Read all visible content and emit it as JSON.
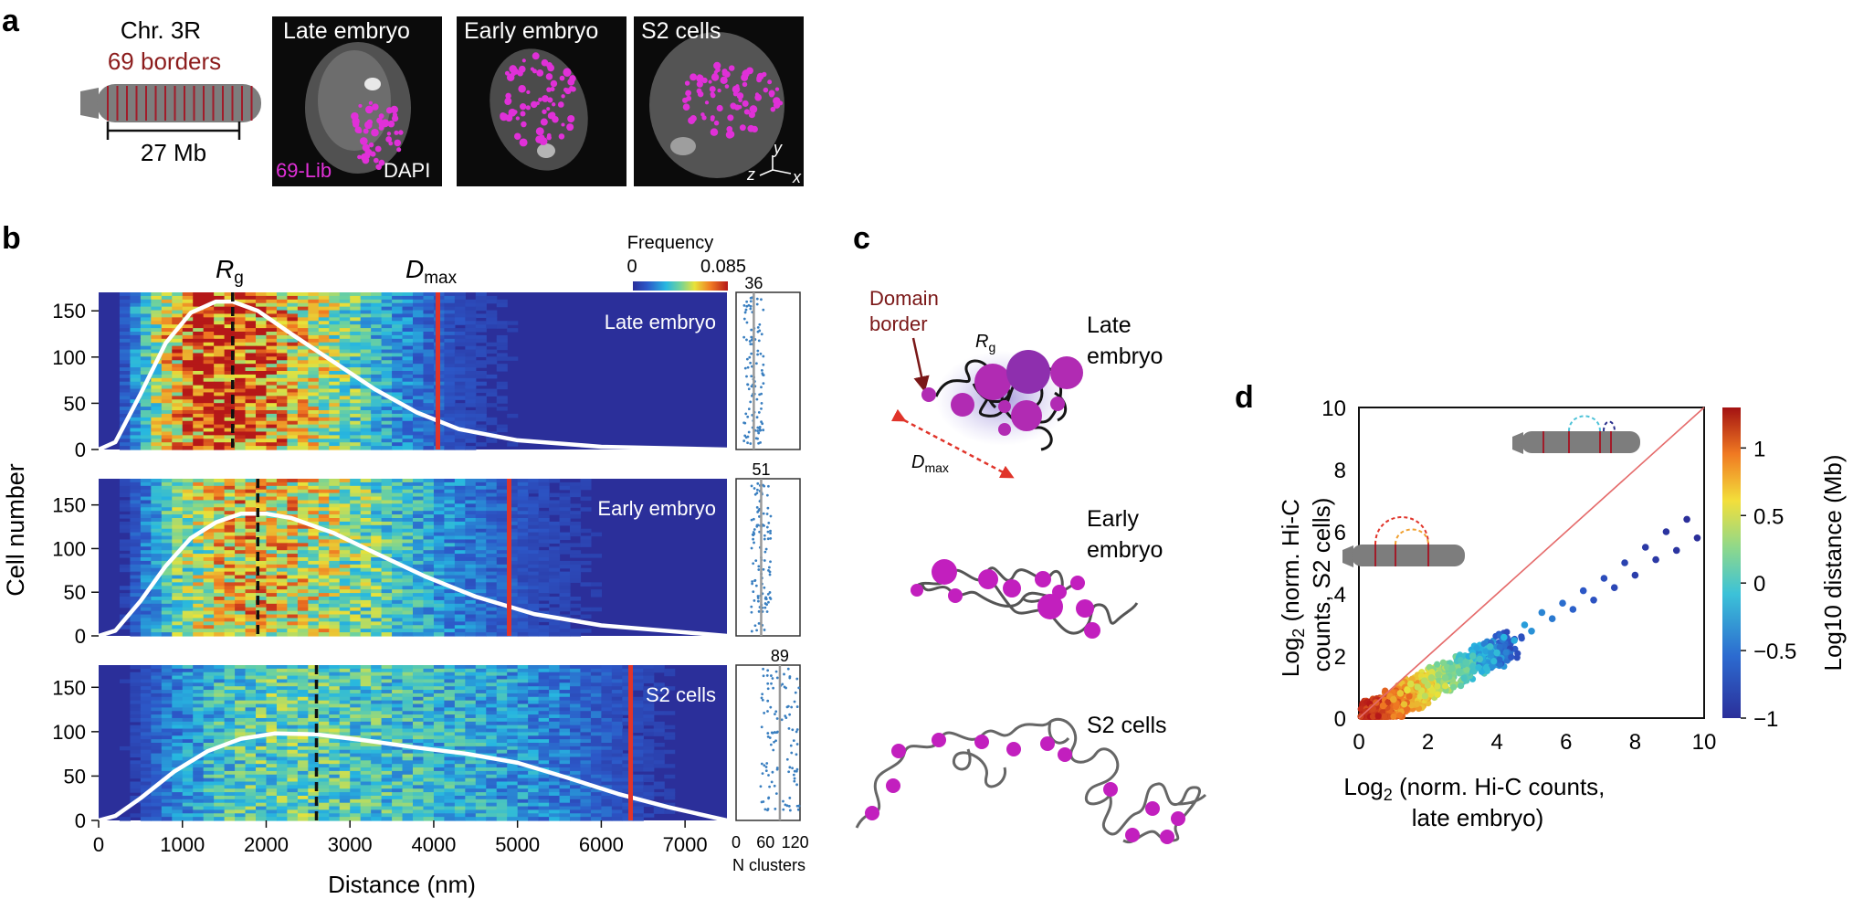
{
  "panels": {
    "a": {
      "letter": "a",
      "chrom_name": "Chr. 3R",
      "borders_label": "69 borders",
      "scale_label": "27 Mb",
      "images": [
        "Late embryo",
        "Early embryo",
        "S2 cells"
      ],
      "probe_label": "69-Lib",
      "dapi_label": "DAPI",
      "axes": {
        "y": "y",
        "z": "z",
        "x": "x"
      }
    },
    "b": {
      "letter": "b",
      "rg_label": "R",
      "rg_sub": "g",
      "dmax_label": "D",
      "dmax_sub": "max",
      "colorbar_title": "Frequency",
      "colorbar_min": "0",
      "colorbar_max": "0.085",
      "ylabel": "Cell number",
      "xlabel": "Distance (nm)",
      "nclusters_label": "N clusters",
      "nclusters_ticks": [
        "0",
        "60",
        "120"
      ],
      "x_ticks": [
        "0",
        "1000",
        "2000",
        "3000",
        "4000",
        "5000",
        "6000",
        "7000"
      ],
      "y_ticks": [
        "0",
        "50",
        "100",
        "150"
      ]
    },
    "c": {
      "letter": "c",
      "domain_border_line1": "Domain",
      "domain_border_line2": "border",
      "rg": "R",
      "rg_sub": "g",
      "dmax": "D",
      "dmax_sub": "max",
      "states": [
        {
          "line1": "Late",
          "line2": "embryo"
        },
        {
          "line1": "Early",
          "line2": "embryo"
        },
        {
          "line1": "S2 cells",
          "line2": ""
        }
      ]
    },
    "d": {
      "letter": "d",
      "ylabel_line1": "Log",
      "ylabel_line1_rest": " (norm. Hi-C",
      "ylabel_line2": "counts, S2 cells)",
      "xlabel_line1": "Log",
      "xlabel_line1_rest": " (norm. Hi-C counts,",
      "xlabel_line2": "late embryo)",
      "sub2": "2",
      "x_ticks": [
        "0",
        "2",
        "4",
        "6",
        "8",
        "10"
      ],
      "y_ticks": [
        "0",
        "2",
        "4",
        "6",
        "8",
        "10"
      ],
      "colorbar_label": "Log10 distance (Mb)",
      "colorbar_ticks": [
        "1",
        "0.5",
        "0",
        "−0.5",
        "−1"
      ]
    }
  },
  "chart_data": [
    {
      "type": "heatmap",
      "title": "Late embryo",
      "xlabel": "Distance (nm)",
      "ylabel": "Cell number",
      "xlim": [
        0,
        7500
      ],
      "ylim": [
        0,
        170
      ],
      "colorbar": {
        "title": "Frequency",
        "min": 0,
        "max": 0.085
      },
      "rg_nm": 1600,
      "dmax_nm": 4050,
      "distribution_curve": {
        "x": [
          0,
          200,
          500,
          800,
          1100,
          1400,
          1600,
          1900,
          2300,
          2800,
          3300,
          3800,
          4300,
          5000,
          6000,
          7500
        ],
        "y": [
          0,
          8,
          60,
          115,
          148,
          160,
          160,
          150,
          125,
          95,
          65,
          40,
          22,
          10,
          3,
          0
        ]
      },
      "n_clusters_mean": 36
    },
    {
      "type": "heatmap",
      "title": "Early embryo",
      "xlabel": "Distance (nm)",
      "ylabel": "Cell number",
      "xlim": [
        0,
        7500
      ],
      "ylim": [
        0,
        180
      ],
      "rg_nm": 1900,
      "dmax_nm": 4900,
      "distribution_curve": {
        "x": [
          0,
          200,
          500,
          800,
          1100,
          1400,
          1700,
          2000,
          2300,
          2800,
          3300,
          3900,
          4500,
          5200,
          6000,
          7500
        ],
        "y": [
          0,
          6,
          40,
          80,
          112,
          130,
          140,
          140,
          135,
          118,
          95,
          68,
          45,
          25,
          12,
          0
        ]
      },
      "n_clusters_mean": 51
    },
    {
      "type": "heatmap",
      "title": "S2 cells",
      "xlabel": "Distance (nm)",
      "ylabel": "Cell number",
      "xlim": [
        0,
        7500
      ],
      "ylim": [
        0,
        175
      ],
      "rg_nm": 2600,
      "dmax_nm": 6350,
      "distribution_curve": {
        "x": [
          0,
          200,
          500,
          900,
          1300,
          1700,
          2100,
          2600,
          3200,
          3800,
          4400,
          5000,
          5600,
          6200,
          6800,
          7500
        ],
        "y": [
          0,
          5,
          25,
          55,
          78,
          92,
          98,
          97,
          90,
          82,
          75,
          65,
          48,
          30,
          15,
          0
        ]
      },
      "n_clusters_mean": 89
    },
    {
      "type": "scatter",
      "title": "",
      "xlabel": "Log2 (norm. Hi-C counts, late embryo)",
      "ylabel": "Log2 (norm. Hi-C counts, S2 cells)",
      "xlim": [
        0,
        10
      ],
      "ylim": [
        0,
        10
      ],
      "reference_line": "y = x",
      "colorbar": {
        "label": "Log10 distance (Mb)",
        "min": -1,
        "max": 1.3
      },
      "points_x": [
        0.2,
        0.4,
        0.5,
        0.7,
        0.9,
        1.0,
        1.2,
        1.4,
        1.5,
        1.7,
        1.9,
        2.1,
        2.3,
        2.5,
        2.7,
        2.9,
        3.1,
        3.3,
        3.5,
        3.8,
        4.0,
        4.2,
        4.5,
        4.8,
        5.0,
        5.3,
        5.6,
        5.9,
        6.2,
        6.5,
        6.8,
        7.1,
        7.4,
        7.7,
        8.0,
        8.3,
        8.6,
        8.9,
        9.2,
        9.5,
        9.8
      ],
      "points_y": [
        0.2,
        0.3,
        0.5,
        0.4,
        0.7,
        0.6,
        0.8,
        0.9,
        1.1,
        1.0,
        1.2,
        1.3,
        1.4,
        1.3,
        1.6,
        1.5,
        1.8,
        2.0,
        1.9,
        2.3,
        2.1,
        2.6,
        2.5,
        3.0,
        2.8,
        3.4,
        3.2,
        3.7,
        3.5,
        4.1,
        3.8,
        4.5,
        4.2,
        5.0,
        4.6,
        5.5,
        5.1,
        6.0,
        5.4,
        6.4,
        5.8
      ],
      "points_color": [
        1.2,
        1.1,
        1.0,
        0.9,
        0.8,
        0.7,
        0.6,
        0.5,
        0.45,
        0.4,
        0.35,
        0.3,
        0.25,
        0.2,
        0.15,
        0.1,
        0.05,
        0.0,
        -0.05,
        -0.1,
        -0.15,
        -0.2,
        -0.25,
        -0.3,
        -0.35,
        -0.4,
        -0.45,
        -0.5,
        -0.55,
        -0.6,
        -0.65,
        -0.7,
        -0.75,
        -0.8,
        -0.85,
        -0.9,
        -0.9,
        -0.95,
        -0.95,
        -1.0,
        -1.0
      ]
    }
  ]
}
